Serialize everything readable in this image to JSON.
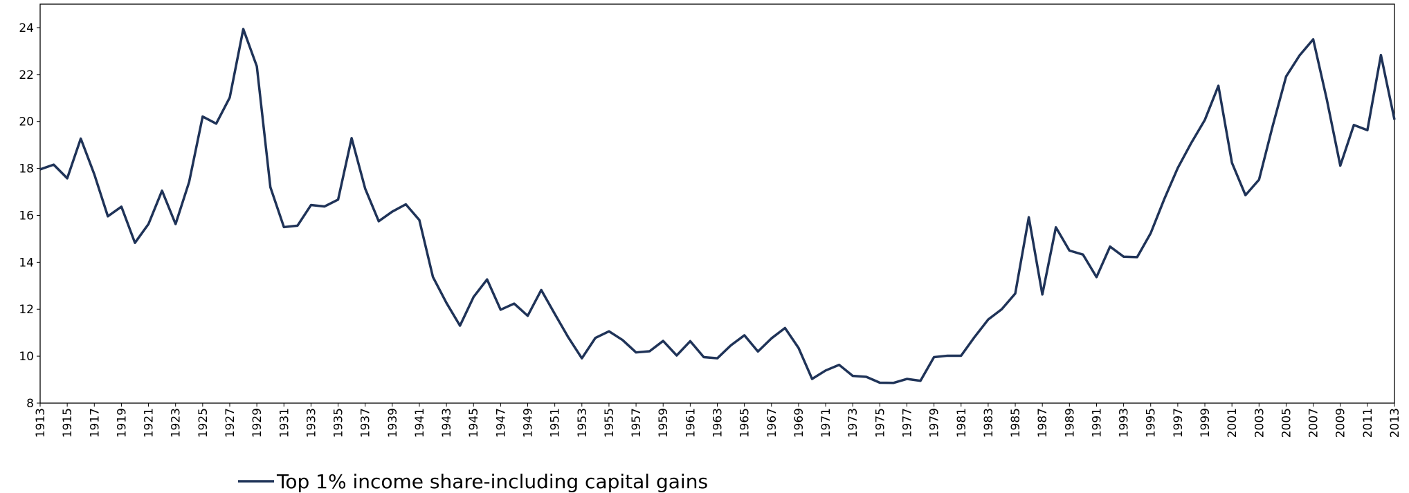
{
  "chart_data": {
    "type": "line",
    "x": [
      1913,
      1914,
      1915,
      1916,
      1917,
      1918,
      1919,
      1920,
      1921,
      1922,
      1923,
      1924,
      1925,
      1926,
      1927,
      1928,
      1929,
      1930,
      1931,
      1932,
      1933,
      1934,
      1935,
      1936,
      1937,
      1938,
      1939,
      1940,
      1941,
      1942,
      1943,
      1944,
      1945,
      1946,
      1947,
      1948,
      1949,
      1950,
      1951,
      1952,
      1953,
      1954,
      1955,
      1956,
      1957,
      1958,
      1959,
      1960,
      1961,
      1962,
      1963,
      1964,
      1965,
      1966,
      1967,
      1968,
      1969,
      1970,
      1971,
      1972,
      1973,
      1974,
      1975,
      1976,
      1977,
      1978,
      1979,
      1980,
      1981,
      1982,
      1983,
      1984,
      1985,
      1986,
      1987,
      1988,
      1989,
      1990,
      1991,
      1992,
      1993,
      1994,
      1995,
      1996,
      1997,
      1998,
      1999,
      2000,
      2001,
      2002,
      2003,
      2004,
      2005,
      2006,
      2007,
      2008,
      2009,
      2010,
      2011,
      2012,
      2013
    ],
    "series": [
      {
        "name": "Top 1% income share-including capital gains",
        "color": "#1f3358",
        "values": [
          17.96,
          18.16,
          17.58,
          19.27,
          17.75,
          15.96,
          16.37,
          14.83,
          15.63,
          17.05,
          15.63,
          17.42,
          20.21,
          19.91,
          21.02,
          23.94,
          22.35,
          17.2,
          15.5,
          15.56,
          16.44,
          16.38,
          16.67,
          19.29,
          17.14,
          15.75,
          16.16,
          16.47,
          15.8,
          13.38,
          12.27,
          11.3,
          12.52,
          13.27,
          11.98,
          12.24,
          11.72,
          12.82,
          11.8,
          10.8,
          9.91,
          10.78,
          11.06,
          10.69,
          10.16,
          10.21,
          10.65,
          10.03,
          10.64,
          9.96,
          9.91,
          10.46,
          10.89,
          10.2,
          10.76,
          11.2,
          10.35,
          9.03,
          9.39,
          9.63,
          9.16,
          9.12,
          8.87,
          8.86,
          9.03,
          8.95,
          9.96,
          10.02,
          10.02,
          10.82,
          11.56,
          12.0,
          12.67,
          15.92,
          12.63,
          15.49,
          14.5,
          14.33,
          13.37,
          14.67,
          14.24,
          14.22,
          15.24,
          16.69,
          18.02,
          19.09,
          20.07,
          21.52,
          18.24,
          16.86,
          17.52,
          19.79,
          21.92,
          22.82,
          23.5,
          20.95,
          18.12,
          19.85,
          19.63,
          22.83,
          20.08
        ]
      }
    ],
    "xlim": [
      1913,
      2013
    ],
    "xticks": [
      1913,
      1915,
      1917,
      1919,
      1921,
      1923,
      1925,
      1927,
      1929,
      1931,
      1933,
      1935,
      1937,
      1939,
      1941,
      1943,
      1945,
      1947,
      1949,
      1951,
      1953,
      1955,
      1957,
      1959,
      1961,
      1963,
      1965,
      1967,
      1969,
      1971,
      1973,
      1975,
      1977,
      1979,
      1981,
      1983,
      1985,
      1987,
      1989,
      1991,
      1993,
      1995,
      1997,
      1999,
      2001,
      2003,
      2005,
      2007,
      2009,
      2011,
      2013
    ],
    "ylim": [
      8,
      25
    ],
    "yticks": [
      8,
      10,
      12,
      14,
      16,
      18,
      20,
      22,
      24
    ],
    "grid": false,
    "legend": "bottom"
  }
}
